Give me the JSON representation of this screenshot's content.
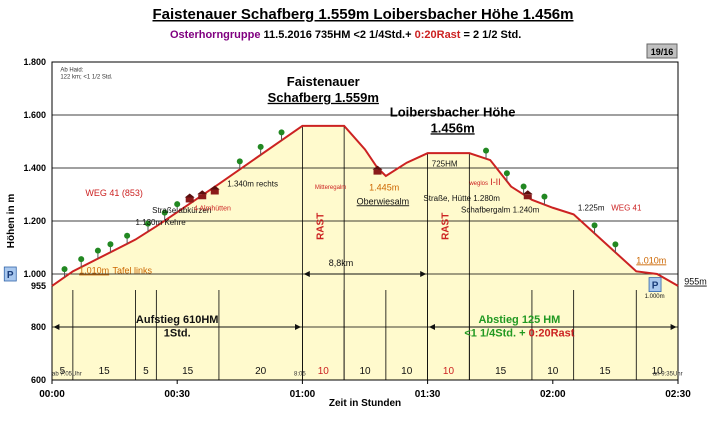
{
  "chart_data": {
    "type": "area",
    "title": "Faistenauer Schafberg 1.559m Loibersbacher Höhe 1.456m",
    "subtitle": {
      "region": "Osterhorngruppe",
      "date": "11.5.2016",
      "hm": "735HM",
      "time_prefix": "<2 1/4Std.+ ",
      "rast": "0:20Rast",
      "time_suffix": " = 2 1/2 Std."
    },
    "badge": "19/16",
    "xlabel": "Zeit in Stunden",
    "ylabel": "Höhen in m",
    "xlim": [
      0,
      150
    ],
    "ylim": [
      600,
      1800
    ],
    "x_ticks": [
      {
        "t": 0,
        "label": "00:00"
      },
      {
        "t": 30,
        "label": "00:30"
      },
      {
        "t": 60,
        "label": "01:00"
      },
      {
        "t": 90,
        "label": "01:30"
      },
      {
        "t": 120,
        "label": "02:00"
      },
      {
        "t": 150,
        "label": "02:30"
      }
    ],
    "y_ticks": [
      {
        "v": 600,
        "label": "600"
      },
      {
        "v": 800,
        "label": "800"
      },
      {
        "v": 1000,
        "label": "1.000"
      },
      {
        "v": 1200,
        "label": "1.200"
      },
      {
        "v": 1400,
        "label": "1.400"
      },
      {
        "v": 1600,
        "label": "1.600"
      },
      {
        "v": 1800,
        "label": "1.800"
      }
    ],
    "y_extra_label": {
      "v": 955,
      "label": "955"
    },
    "profile": [
      {
        "t": 0,
        "h": 955
      },
      {
        "t": 5,
        "h": 1010
      },
      {
        "t": 20,
        "h": 1130
      },
      {
        "t": 25,
        "h": 1180
      },
      {
        "t": 40,
        "h": 1340
      },
      {
        "t": 60,
        "h": 1559
      },
      {
        "t": 70,
        "h": 1559
      },
      {
        "t": 75,
        "h": 1470
      },
      {
        "t": 78,
        "h": 1400
      },
      {
        "t": 80,
        "h": 1370
      },
      {
        "t": 85,
        "h": 1420
      },
      {
        "t": 90,
        "h": 1456
      },
      {
        "t": 100,
        "h": 1456
      },
      {
        "t": 105,
        "h": 1430
      },
      {
        "t": 110,
        "h": 1330
      },
      {
        "t": 115,
        "h": 1280
      },
      {
        "t": 120,
        "h": 1250
      },
      {
        "t": 125,
        "h": 1225
      },
      {
        "t": 140,
        "h": 1010
      },
      {
        "t": 145,
        "h": 1000
      },
      {
        "t": 150,
        "h": 955
      }
    ],
    "segments": [
      {
        "t0": 0,
        "t1": 5,
        "label": "5"
      },
      {
        "t0": 5,
        "t1": 20,
        "label": "15"
      },
      {
        "t0": 20,
        "t1": 25,
        "label": "5"
      },
      {
        "t0": 25,
        "t1": 40,
        "label": "15"
      },
      {
        "t0": 40,
        "t1": 60,
        "label": "20"
      },
      {
        "t0": 60,
        "t1": 70,
        "label": "10",
        "rast": true
      },
      {
        "t0": 70,
        "t1": 80,
        "label": "10"
      },
      {
        "t0": 80,
        "t1": 90,
        "label": "10"
      },
      {
        "t0": 90,
        "t1": 100,
        "label": "10",
        "rast": true
      },
      {
        "t0": 100,
        "t1": 115,
        "label": "15"
      },
      {
        "t0": 115,
        "t1": 125,
        "label": "10"
      },
      {
        "t0": 125,
        "t1": 140,
        "label": "15"
      },
      {
        "t0": 140,
        "t1": 150,
        "label": "10"
      }
    ],
    "rast_bands": [
      {
        "t0": 60,
        "t1": 70,
        "label": "RAST"
      },
      {
        "t0": 90,
        "t1": 100,
        "label": "RAST"
      }
    ],
    "summit_labels": [
      {
        "t": 65,
        "h": 1710,
        "line1": "Faistenauer",
        "line2": "Schafberg 1.559m"
      },
      {
        "t": 96,
        "h": 1595,
        "line1": "Loibersbacher Höhe",
        "line2": "1.456m"
      }
    ],
    "annotations": [
      {
        "t": 2,
        "h": 1765,
        "text": "Ab Haid:",
        "color": "#333333",
        "size": 6
      },
      {
        "t": 2,
        "h": 1738,
        "text": "122 km; <1 1/2 Std.",
        "color": "#333333",
        "size": 6
      },
      {
        "t": 8,
        "h": 1295,
        "text": "WEG 41 (853)",
        "color": "#cc2222",
        "size": 9
      },
      {
        "t": 24,
        "h": 1230,
        "text": "Straße abkürzen",
        "color": "#111111",
        "size": 8
      },
      {
        "t": 20,
        "h": 1185,
        "text": "1.130m Kehre",
        "color": "#111111",
        "size": 8
      },
      {
        "t": 42,
        "h": 1330,
        "text": "1.340m rechts",
        "color": "#111111",
        "size": 8
      },
      {
        "t": 34,
        "h": 1240,
        "text": "4 Almhütten",
        "color": "#cc2222",
        "size": 7
      },
      {
        "t": 6.5,
        "h": 1002,
        "text": "1.010m",
        "color": "#cc6600",
        "size": 9,
        "underline": true
      },
      {
        "t": 14.5,
        "h": 1002,
        "text": "Tafel links",
        "color": "#cc6600",
        "size": 9
      },
      {
        "t": 63,
        "h": 1320,
        "text": "Mitteregalm",
        "color": "#cc2222",
        "size": 6
      },
      {
        "t": 76,
        "h": 1315,
        "text": "1.445m",
        "color": "#cc6600",
        "size": 9
      },
      {
        "t": 73,
        "h": 1263,
        "text": "Oberwiesalm",
        "color": "#111111",
        "size": 9,
        "underline": true
      },
      {
        "t": 91,
        "h": 1405,
        "text": "725HM",
        "color": "#111111",
        "size": 8
      },
      {
        "t": 100,
        "h": 1335,
        "text": "weglos",
        "color": "#cc2222",
        "size": 6
      },
      {
        "t": 105,
        "h": 1335,
        "text": "I-II",
        "color": "#cc2222",
        "size": 9
      },
      {
        "t": 89,
        "h": 1275,
        "text": "Straße, Hütte 1.280m",
        "color": "#111111",
        "size": 8
      },
      {
        "t": 98,
        "h": 1233,
        "text": "Schafbergalm 1.240m",
        "color": "#111111",
        "size": 8
      },
      {
        "t": 126,
        "h": 1240,
        "text": "1.225m",
        "color": "#111111",
        "size": 8
      },
      {
        "t": 134,
        "h": 1240,
        "text": "WEG 41",
        "color": "#cc2222",
        "size": 8
      },
      {
        "t": 140,
        "h": 1040,
        "text": "1.010m",
        "color": "#cc6600",
        "size": 9,
        "underline": true
      },
      {
        "t": 142,
        "h": 910,
        "text": "1.000m",
        "color": "#111111",
        "size": 6
      },
      {
        "t": 151.5,
        "h": 960,
        "text": "955m",
        "color": "#111111",
        "size": 9,
        "underline": true
      },
      {
        "t": 0,
        "h": 617,
        "text": "ab 7:05Uhr",
        "color": "#333333",
        "size": 6
      },
      {
        "t": 58,
        "h": 617,
        "text": "8:05",
        "color": "#333333",
        "size": 6
      },
      {
        "t": 144,
        "h": 617,
        "text": "an 9:35Uhr",
        "color": "#333333",
        "size": 6
      },
      {
        "t": 66.3,
        "h": 1030,
        "text": "8,8km",
        "color": "#111111",
        "size": 9
      }
    ],
    "phase_labels": [
      {
        "t": 30,
        "h": 815,
        "text": "Aufstieg 610HM",
        "color": "#111111",
        "size": 11
      },
      {
        "t": 30,
        "h": 765,
        "text": "1Std.",
        "color": "#111111",
        "size": 11
      },
      {
        "t": 112,
        "h": 815,
        "text": "Abstieg 125 HM",
        "color": "#229922",
        "size": 11
      }
    ],
    "abstieg_time": {
      "t": 112,
      "h": 765,
      "prefix": "<1 1/4Std. + ",
      "rast": "0:20Rast"
    },
    "parking_markers": [
      {
        "t": -10,
        "h": 1000,
        "label": "P"
      },
      {
        "t": 144.5,
        "h": 960,
        "label": "P"
      }
    ],
    "trees_at": [
      3,
      7,
      11,
      14,
      18,
      23,
      27,
      30,
      45,
      50,
      55,
      104,
      109,
      113,
      118,
      130,
      135
    ],
    "huts_at": [
      {
        "t": 33,
        "h": 1270
      },
      {
        "t": 36,
        "h": 1282
      },
      {
        "t": 39,
        "h": 1300
      },
      {
        "t": 78,
        "h": 1375
      },
      {
        "t": 114,
        "h": 1282
      }
    ],
    "distance_arrow": {
      "t0": 60,
      "t1": 90,
      "h": 1000
    },
    "phase_arrows": [
      {
        "t0": 0,
        "t1": 60,
        "h": 800
      },
      {
        "t0": 90,
        "t1": 150,
        "h": 800
      }
    ],
    "colors": {
      "profile": "#cc2222",
      "fill": "#fffacd",
      "rast_band": "#cc2222",
      "badge_bg": "#c0c0c0",
      "parking": "#a9c8ee",
      "tree": "#228822",
      "hut": "#8b1a1a",
      "green": "#229922",
      "purple": "#800080"
    }
  }
}
